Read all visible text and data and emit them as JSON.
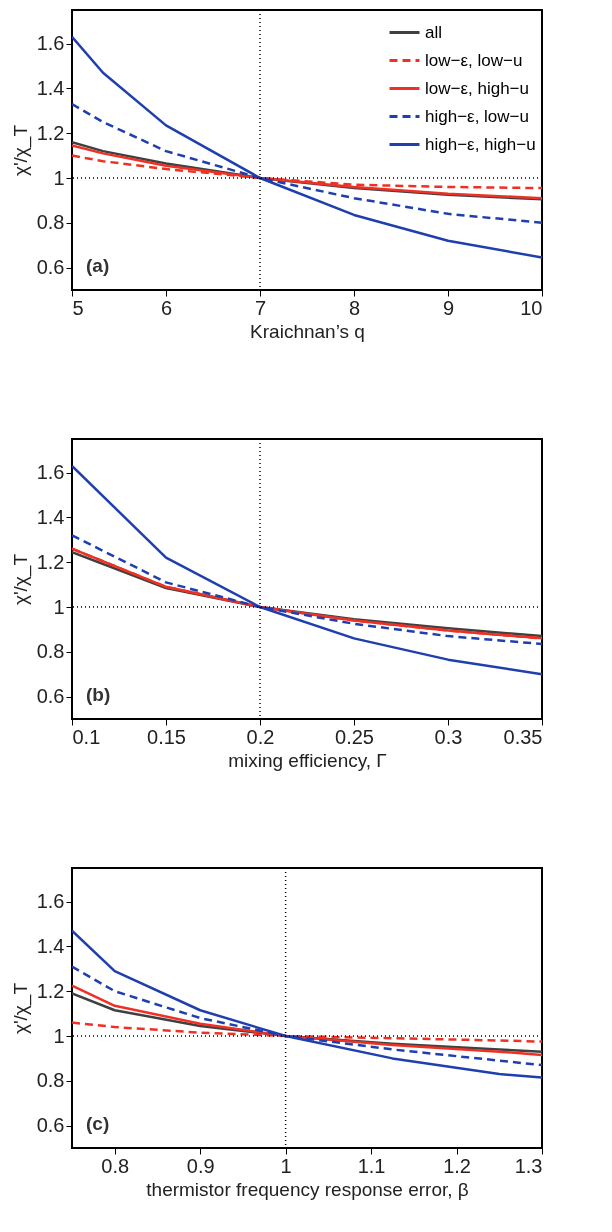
{
  "chart_data": [
    {
      "type": "line",
      "xlabel": "Kraichnan’s q",
      "ylabel": "χ'/χ_T",
      "x": [
        5,
        5.33,
        6,
        7,
        8,
        9,
        10
      ],
      "xlim": [
        5,
        10
      ],
      "xticks": [
        5,
        6,
        7,
        8,
        9,
        10
      ],
      "ylim": [
        0.5,
        1.75
      ],
      "yticks": [
        0.6,
        0.8,
        1,
        1.2,
        1.4,
        1.6
      ],
      "grid": false,
      "legend": "top right",
      "annotations": [
        "(a)"
      ],
      "ref_lines": [
        {
          "axis": "x",
          "value": 7,
          "line_style": "dotted",
          "color": "#000000"
        },
        {
          "axis": "y",
          "value": 1,
          "line_style": "dotted",
          "color": "#000000"
        }
      ],
      "series": [
        {
          "name": "all",
          "color": "#404040",
          "line_style": "solid",
          "values": [
            1.16,
            1.12,
            1.065,
            1.0,
            0.955,
            0.925,
            0.905
          ]
        },
        {
          "name": "low−ε, low−u",
          "color": "#ee3124",
          "line_style": "dashed",
          "values": [
            1.1,
            1.075,
            1.04,
            1.0,
            0.97,
            0.96,
            0.955
          ]
        },
        {
          "name": "low−ε, high−u",
          "color": "#ee3124",
          "line_style": "solid",
          "values": [
            1.145,
            1.11,
            1.055,
            1.0,
            0.96,
            0.93,
            0.91
          ]
        },
        {
          "name": "high−ε, low−u",
          "color": "#1f3fae",
          "line_style": "dashed",
          "values": [
            1.33,
            1.25,
            1.12,
            1.0,
            0.91,
            0.84,
            0.8
          ]
        },
        {
          "name": "high−ε, high−u",
          "color": "#1f3fae",
          "line_style": "solid",
          "values": [
            1.63,
            1.47,
            1.235,
            1.0,
            0.835,
            0.72,
            0.645
          ]
        }
      ]
    },
    {
      "type": "line",
      "xlabel": "mixing efficiency, Γ",
      "ylabel": "χ'/χ_T",
      "x": [
        0.1,
        0.15,
        0.2,
        0.25,
        0.3,
        0.35
      ],
      "xlim": [
        0.1,
        0.35
      ],
      "xticks": [
        0.1,
        0.15,
        0.2,
        0.25,
        0.3,
        0.35
      ],
      "ylim": [
        0.5,
        1.75
      ],
      "yticks": [
        0.6,
        0.8,
        1,
        1.2,
        1.4,
        1.6
      ],
      "grid": false,
      "annotations": [
        "(b)"
      ],
      "ref_lines": [
        {
          "axis": "x",
          "value": 0.2,
          "line_style": "dotted",
          "color": "#000000"
        },
        {
          "axis": "y",
          "value": 1,
          "line_style": "dotted",
          "color": "#000000"
        }
      ],
      "series": [
        {
          "color": "#404040",
          "line_style": "solid",
          "values": [
            1.245,
            1.085,
            1.0,
            0.945,
            0.905,
            0.87
          ]
        },
        {
          "color": "#ee3124",
          "line_style": "dashed",
          "values": [
            1.26,
            1.09,
            1.0,
            0.94,
            0.895,
            0.86
          ]
        },
        {
          "color": "#ee3124",
          "line_style": "solid",
          "values": [
            1.26,
            1.09,
            1.0,
            0.94,
            0.895,
            0.86
          ]
        },
        {
          "color": "#1f3fae",
          "line_style": "dashed",
          "values": [
            1.32,
            1.11,
            1.0,
            0.925,
            0.87,
            0.835
          ]
        },
        {
          "color": "#1f3fae",
          "line_style": "solid",
          "values": [
            1.63,
            1.22,
            1.0,
            0.86,
            0.765,
            0.7
          ]
        }
      ]
    },
    {
      "type": "line",
      "xlabel": "thermistor frequency response error, β",
      "ylabel": "χ'/χ_T",
      "x": [
        0.75,
        0.8,
        0.9,
        1,
        1.125,
        1.25,
        1.3
      ],
      "xlim": [
        0.75,
        1.3
      ],
      "xticks": [
        0.8,
        0.9,
        1,
        1.1,
        1.2,
        1.3
      ],
      "ylim": [
        0.5,
        1.75
      ],
      "yticks": [
        0.6,
        0.8,
        1,
        1.2,
        1.4,
        1.6
      ],
      "grid": false,
      "annotations": [
        "(c)"
      ],
      "ref_lines": [
        {
          "axis": "x",
          "value": 1,
          "line_style": "dotted",
          "color": "#000000"
        },
        {
          "axis": "y",
          "value": 1,
          "line_style": "dotted",
          "color": "#000000"
        }
      ],
      "series": [
        {
          "color": "#404040",
          "line_style": "solid",
          "values": [
            1.19,
            1.115,
            1.045,
            1.0,
            0.965,
            0.94,
            0.93
          ]
        },
        {
          "color": "#ee3124",
          "line_style": "dashed",
          "values": [
            1.06,
            1.04,
            1.015,
            1.0,
            0.99,
            0.98,
            0.975
          ]
        },
        {
          "color": "#ee3124",
          "line_style": "solid",
          "values": [
            1.225,
            1.135,
            1.055,
            1.0,
            0.96,
            0.93,
            0.915
          ]
        },
        {
          "color": "#1f3fae",
          "line_style": "dashed",
          "values": [
            1.31,
            1.2,
            1.08,
            1.0,
            0.94,
            0.89,
            0.87
          ]
        },
        {
          "color": "#1f3fae",
          "line_style": "solid",
          "values": [
            1.47,
            1.29,
            1.115,
            1.0,
            0.9,
            0.83,
            0.815
          ]
        }
      ]
    }
  ]
}
